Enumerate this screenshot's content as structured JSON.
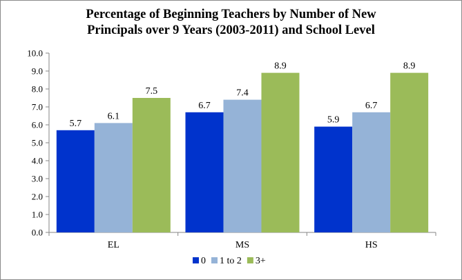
{
  "chart_data": {
    "type": "bar",
    "title_lines": [
      "Percentage of Beginning Teachers by Number of New",
      "Principals over 9 Years (2003-2011) and School Level"
    ],
    "categories": [
      "EL",
      "MS",
      "HS"
    ],
    "series": [
      {
        "name": "0",
        "color": "#0033cc",
        "values": [
          5.7,
          6.7,
          5.9
        ]
      },
      {
        "name": "1 to 2",
        "color": "#95b3d7",
        "values": [
          6.1,
          7.4,
          6.7
        ]
      },
      {
        "name": "3+",
        "color": "#9bbb59",
        "values": [
          7.5,
          8.9,
          8.9
        ]
      }
    ],
    "ylim": [
      0,
      10
    ],
    "ytick_step": 1,
    "ytick_labels": [
      "0.0",
      "1.0",
      "2.0",
      "3.0",
      "4.0",
      "5.0",
      "6.0",
      "7.0",
      "8.0",
      "9.0",
      "10.0"
    ],
    "xlabel": "",
    "ylabel": "",
    "grid": false,
    "legend_position": "bottom"
  }
}
